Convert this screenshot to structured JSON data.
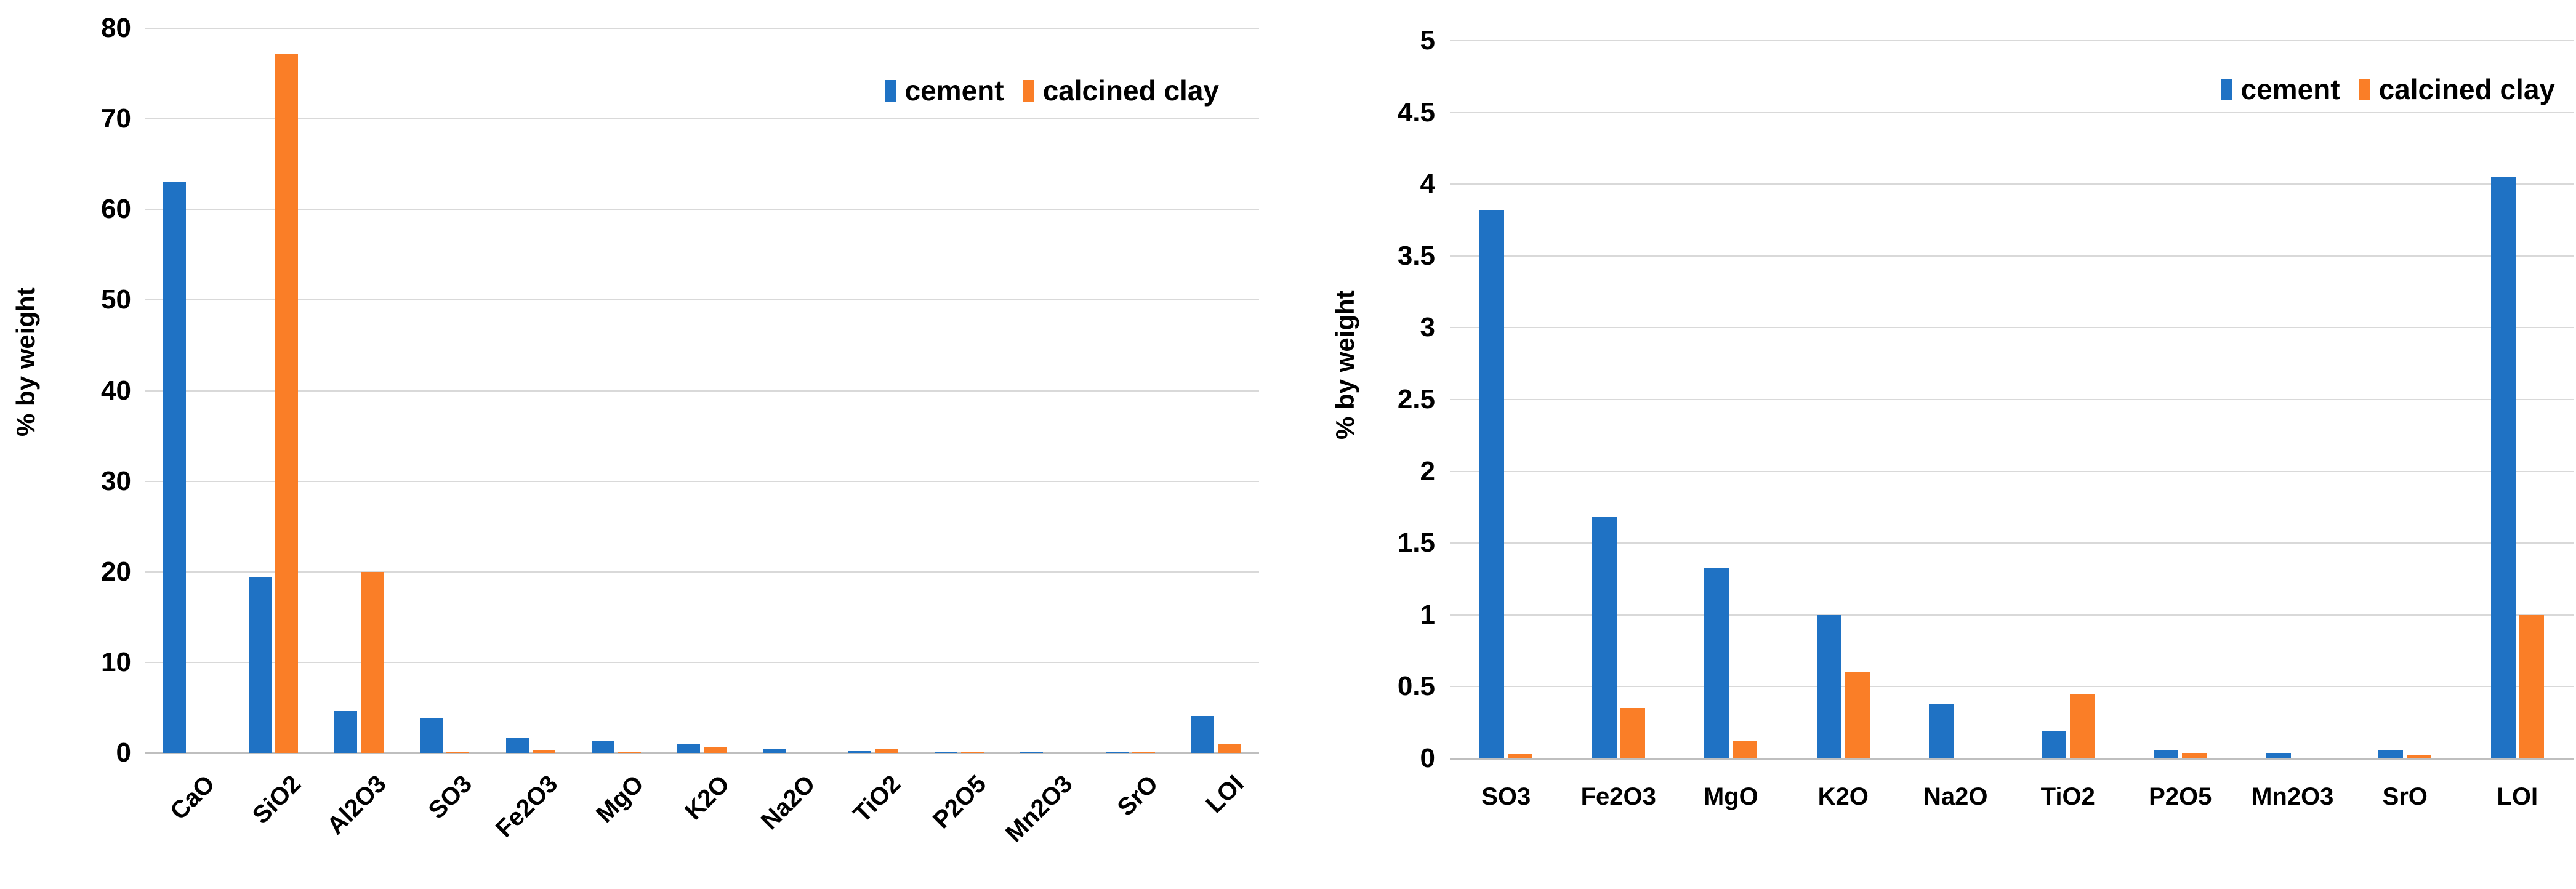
{
  "page": {
    "background": "#ffffff"
  },
  "colors": {
    "cement": "#1f72c4",
    "calcined_clay": "#fa7e27",
    "gridline": "#d9d9d9",
    "baseline": "#bfbfbf",
    "text": "#000000"
  },
  "legend": {
    "cement_label": "cement",
    "calcined_clay_label": "calcined clay"
  },
  "chart_data": [
    {
      "id": "left",
      "type": "bar",
      "title": "",
      "xlabel": "",
      "ylabel": "% by weight",
      "ylim": [
        0,
        80
      ],
      "ytick_step": 10,
      "yticks": [
        "0",
        "10",
        "20",
        "30",
        "40",
        "50",
        "60",
        "70",
        "80"
      ],
      "grid": true,
      "legend_position": "top-right",
      "xlabel_rotation": -45,
      "categories": [
        "CaO",
        "SiO2",
        "Al2O3",
        "SO3",
        "Fe2O3",
        "MgO",
        "K2O",
        "Na2O",
        "TiO2",
        "P2O5",
        "Mn2O3",
        "SrO",
        "LOI"
      ],
      "series": [
        {
          "name": "cement",
          "color_key": "cement",
          "values": [
            63.0,
            19.4,
            4.6,
            3.82,
            1.68,
            1.33,
            1.0,
            0.38,
            0.19,
            0.06,
            0.04,
            0.06,
            4.05
          ]
        },
        {
          "name": "calcined clay",
          "color_key": "calcined_clay",
          "values": [
            0,
            77.2,
            20.0,
            0.03,
            0.35,
            0.12,
            0.6,
            0,
            0.45,
            0.04,
            0,
            0.02,
            1.0
          ]
        }
      ]
    },
    {
      "id": "right",
      "type": "bar",
      "title": "",
      "xlabel": "",
      "ylabel": "% by weight",
      "ylim": [
        0,
        5
      ],
      "ytick_step": 0.5,
      "yticks": [
        "0",
        "0.5",
        "1",
        "1.5",
        "2",
        "2.5",
        "3",
        "3.5",
        "4",
        "4.5",
        "5"
      ],
      "grid": true,
      "legend_position": "top-right",
      "xlabel_rotation": 0,
      "categories": [
        "SO3",
        "Fe2O3",
        "MgO",
        "K2O",
        "Na2O",
        "TiO2",
        "P2O5",
        "Mn2O3",
        "SrO",
        "LOI"
      ],
      "series": [
        {
          "name": "cement",
          "color_key": "cement",
          "values": [
            3.82,
            1.68,
            1.33,
            1.0,
            0.38,
            0.19,
            0.06,
            0.04,
            0.06,
            4.05
          ]
        },
        {
          "name": "calcined clay",
          "color_key": "calcined_clay",
          "values": [
            0.03,
            0.35,
            0.12,
            0.6,
            0,
            0.45,
            0.04,
            0,
            0.02,
            1.0
          ]
        }
      ]
    }
  ]
}
